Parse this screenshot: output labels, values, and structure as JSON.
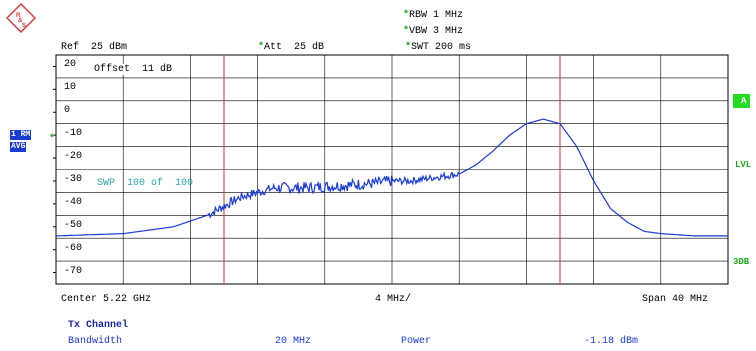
{
  "logo": {
    "text": "R&S"
  },
  "settings": {
    "rbw": "RBW 1 MHz",
    "vbw": "VBW 3 MHz",
    "swt": "SWT 200 ms",
    "ref": "Ref  25 dBm",
    "att": "Att  25 dB",
    "offset": "Offset  11 dB",
    "sweep": "SWP  100 of  100"
  },
  "trace_tag": {
    "line1": "1 RM",
    "line2": "AVG"
  },
  "right_tags": {
    "a": "A",
    "lvl": "LVL",
    "three_db": "3DB"
  },
  "y_ticks": [
    "20",
    "10",
    "0",
    "-10",
    "-20",
    "-30",
    "-40",
    "-50",
    "-60",
    "-70"
  ],
  "footer": {
    "center": "Center 5.22 GHz",
    "div": "4 MHz/",
    "span": "Span 40 MHz"
  },
  "tx_channel": {
    "title": "Tx Channel",
    "bandwidth_label": "Bandwidth",
    "bandwidth_value": "20 MHz",
    "power_label": "Power",
    "power_value": "-1.18 dBm"
  },
  "colors": {
    "trace": "#1a3ad6",
    "channel_lines": "#e03020",
    "grid": "#000000",
    "sweep_text": "#2aa5a5",
    "accent_green": "#22dd22"
  },
  "chart_data": {
    "type": "line",
    "title": "",
    "xlabel": "",
    "ylabel": "",
    "x_unit": "MHz offset from center",
    "xlim": [
      -20,
      20
    ],
    "ylim": [
      -75,
      25
    ],
    "channel_edges": [
      -10,
      10
    ],
    "series": [
      {
        "x": [
          -20,
          -16,
          -13,
          -11,
          -10,
          -9,
          -7,
          -5,
          -3,
          -1,
          0,
          1,
          3,
          4,
          5,
          6,
          7,
          8,
          9,
          10,
          11,
          12,
          13,
          14,
          15,
          16,
          18,
          20
        ],
        "values": [
          -54,
          -53,
          -50,
          -45,
          -41,
          -37,
          -33,
          -33,
          -32,
          -31,
          -30,
          -30,
          -28,
          -27,
          -23,
          -17,
          -10,
          -5,
          -3,
          -5,
          -15,
          -30,
          -42,
          -48,
          -52,
          -53,
          -54,
          -54
        ]
      }
    ]
  }
}
